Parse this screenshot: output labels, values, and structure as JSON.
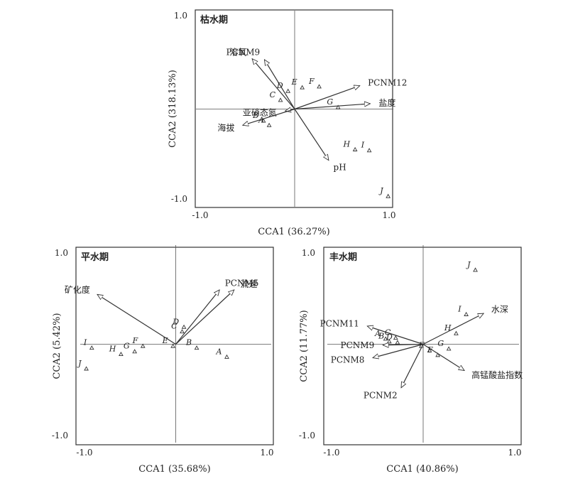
{
  "chart_data": [
    {
      "type": "scatter",
      "title": "枯水期",
      "xlabel": "CCA1 (36.27%)",
      "ylabel": "CCA2 (318.13%)",
      "xlim": [
        -1.0,
        1.0
      ],
      "ylim": [
        -1.0,
        1.0
      ],
      "xticks": [
        "-1.0",
        "1.0"
      ],
      "yticks": [
        "1.0",
        "-1.0"
      ],
      "grid": false,
      "arrows": [
        {
          "label": "溶氧",
          "x": -0.45,
          "y": 0.56
        },
        {
          "label": "PCNM9",
          "x": -0.32,
          "y": 0.55
        },
        {
          "label": "PCNM12",
          "x": 0.69,
          "y": 0.26
        },
        {
          "label": "盐度",
          "x": 0.8,
          "y": 0.06
        },
        {
          "label": "亚硝态氮",
          "x": -0.1,
          "y": -0.02
        },
        {
          "label": "海拔",
          "x": -0.55,
          "y": -0.18
        },
        {
          "label": "pH",
          "x": 0.36,
          "y": -0.57
        }
      ],
      "sites": [
        {
          "label": "D",
          "x": -0.07,
          "y": 0.2
        },
        {
          "label": "C",
          "x": -0.15,
          "y": 0.1
        },
        {
          "label": "E",
          "x": 0.08,
          "y": 0.24
        },
        {
          "label": "F",
          "x": 0.26,
          "y": 0.25
        },
        {
          "label": "G",
          "x": 0.46,
          "y": 0.02
        },
        {
          "label": "B",
          "x": -0.33,
          "y": -0.13
        },
        {
          "label": "A",
          "x": -0.27,
          "y": -0.18
        },
        {
          "label": "H",
          "x": 0.64,
          "y": -0.45
        },
        {
          "label": "I",
          "x": 0.79,
          "y": -0.46
        },
        {
          "label": "J",
          "x": 0.99,
          "y": -0.97
        }
      ]
    },
    {
      "type": "scatter",
      "title": "平水期",
      "xlabel": "CCA1 (35.68%)",
      "ylabel": "CCA2 (5.42%)",
      "xlim": [
        -1.0,
        1.0
      ],
      "ylim": [
        -1.0,
        1.0
      ],
      "xticks": [
        "-1.0",
        "1.0"
      ],
      "yticks": [
        "1.0",
        "-1.0"
      ],
      "grid": false,
      "arrows": [
        {
          "label": "矿化度",
          "x": -0.86,
          "y": 0.55
        },
        {
          "label": "PCNM5",
          "x": 0.48,
          "y": 0.6
        },
        {
          "label": "流速",
          "x": 0.64,
          "y": 0.6
        }
      ],
      "sites": [
        {
          "label": "D",
          "x": 0.09,
          "y": 0.19
        },
        {
          "label": "C",
          "x": 0.07,
          "y": 0.14
        },
        {
          "label": "E",
          "x": -0.03,
          "y": -0.02
        },
        {
          "label": "B",
          "x": 0.23,
          "y": -0.04
        },
        {
          "label": "A",
          "x": 0.56,
          "y": -0.14
        },
        {
          "label": "F",
          "x": -0.36,
          "y": -0.02
        },
        {
          "label": "G",
          "x": -0.45,
          "y": -0.08
        },
        {
          "label": "H",
          "x": -0.6,
          "y": -0.11
        },
        {
          "label": "I",
          "x": -0.92,
          "y": -0.04
        },
        {
          "label": "J",
          "x": -0.98,
          "y": -0.27
        }
      ]
    },
    {
      "type": "scatter",
      "title": "丰水期",
      "xlabel": "CCA1 (40.86%)",
      "ylabel": "CCA2 (11.77%)",
      "xlim": [
        -1.0,
        1.0
      ],
      "ylim": [
        -1.0,
        1.0
      ],
      "xticks": [
        "-1.0",
        "1.0"
      ],
      "yticks": [
        "1.0",
        "-1.0"
      ],
      "grid": false,
      "arrows": [
        {
          "label": "水深",
          "x": 0.66,
          "y": 0.34
        },
        {
          "label": "PCNM11",
          "x": -0.61,
          "y": 0.2
        },
        {
          "label": "PCNM9",
          "x": -0.44,
          "y": -0.01
        },
        {
          "label": "PCNM8",
          "x": -0.55,
          "y": -0.15
        },
        {
          "label": "PCNM2",
          "x": -0.24,
          "y": -0.48
        },
        {
          "label": "高锰酸盐指数",
          "x": 0.45,
          "y": -0.29
        }
      ],
      "sites": [
        {
          "label": "J",
          "x": 0.57,
          "y": 0.82
        },
        {
          "label": "I",
          "x": 0.47,
          "y": 0.33
        },
        {
          "label": "H",
          "x": 0.36,
          "y": 0.12
        },
        {
          "label": "A",
          "x": -0.41,
          "y": 0.06
        },
        {
          "label": "C",
          "x": -0.3,
          "y": 0.07
        },
        {
          "label": "B",
          "x": -0.37,
          "y": 0.03
        },
        {
          "label": "D",
          "x": -0.28,
          "y": 0.02
        },
        {
          "label": "G",
          "x": 0.28,
          "y": -0.05
        },
        {
          "label": "E",
          "x": 0.07,
          "y": -0.07
        },
        {
          "label": "F",
          "x": 0.16,
          "y": -0.12
        }
      ]
    }
  ]
}
